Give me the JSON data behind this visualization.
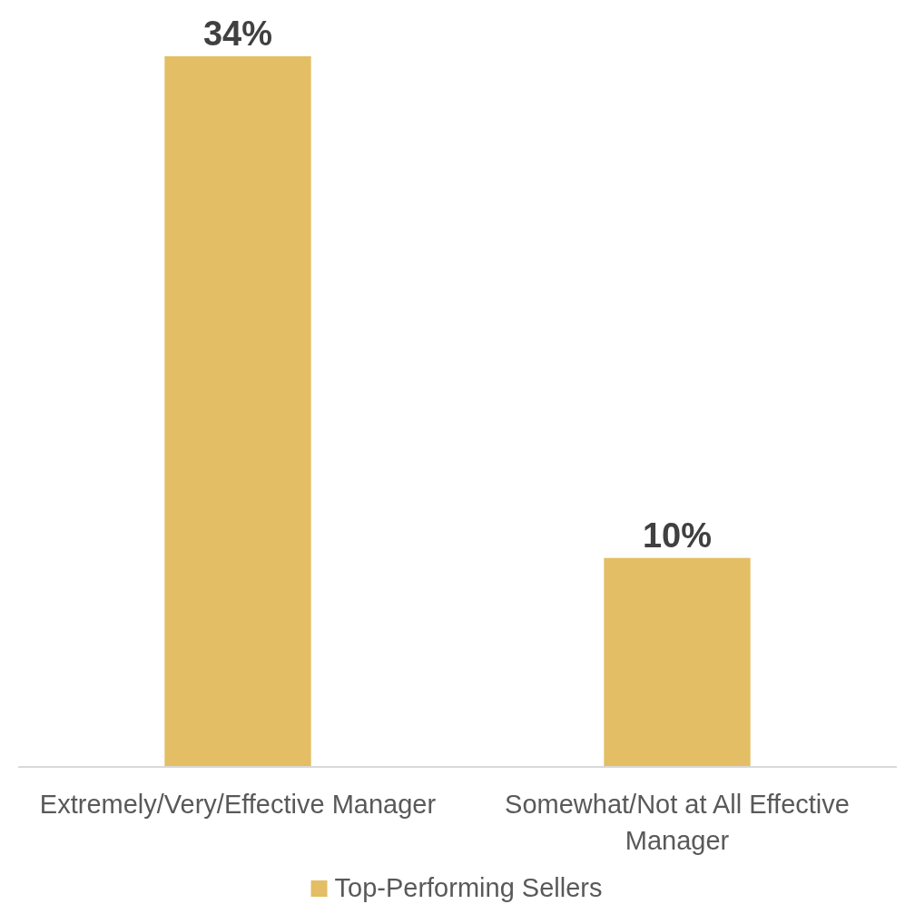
{
  "chart_data": {
    "type": "bar",
    "categories": [
      "Extremely/Very/Effective Manager",
      "Somewhat/Not at All Effective Manager"
    ],
    "series": [
      {
        "name": "Top-Performing Sellers",
        "color": "#e3be64",
        "values": [
          34,
          10
        ],
        "value_labels": [
          "34%",
          "10%"
        ]
      }
    ],
    "legend": "bottom"
  }
}
